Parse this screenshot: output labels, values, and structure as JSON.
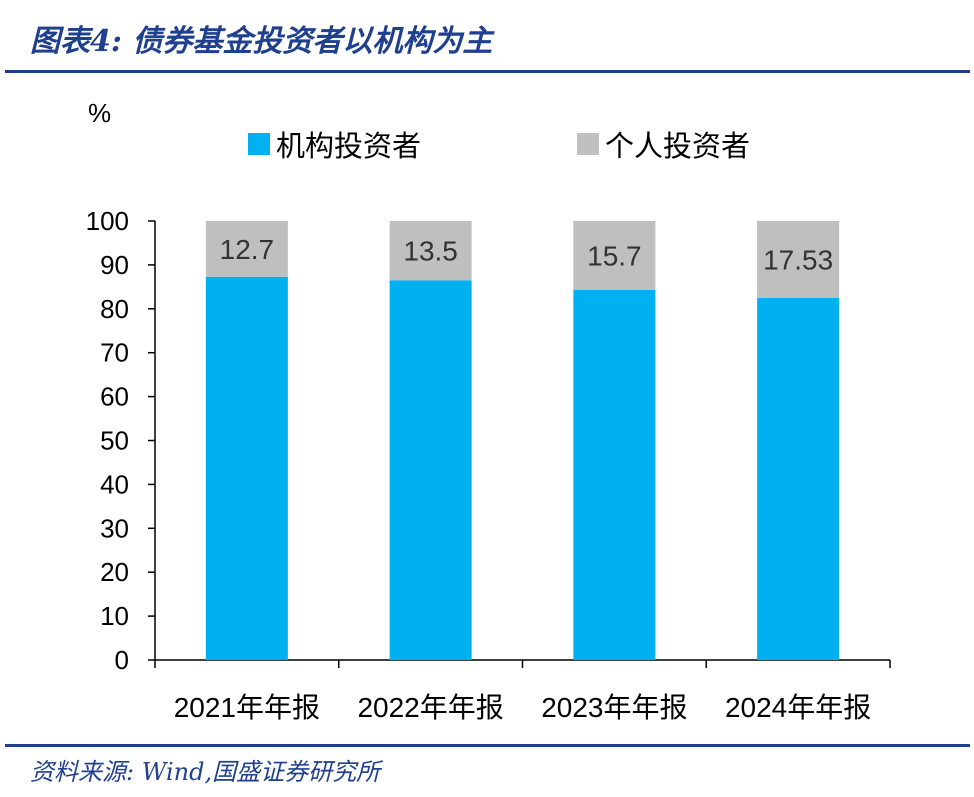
{
  "header": {
    "title": "图表4:  债券基金投资者以机构为主"
  },
  "footer": {
    "source": "资料来源:  Wind,国盛证券研究所"
  },
  "chart_data": {
    "type": "bar",
    "stacked": true,
    "unit": "%",
    "categories": [
      "2021年年报",
      "2022年年报",
      "2023年年报",
      "2024年年报"
    ],
    "series": [
      {
        "name": "机构投资者",
        "values": [
          87.3,
          86.5,
          84.3,
          82.47
        ],
        "color": "#00b0f0",
        "show_labels": false
      },
      {
        "name": "个人投资者",
        "values": [
          12.7,
          13.5,
          15.7,
          17.53
        ],
        "color": "#bfbfbf",
        "show_labels": true
      }
    ],
    "data_labels": [
      "12.7",
      "13.5",
      "15.7",
      "17.53"
    ],
    "ylim": [
      0,
      100
    ],
    "yticks": [
      0,
      10,
      20,
      30,
      40,
      50,
      60,
      70,
      80,
      90,
      100
    ],
    "grid": false,
    "legend_position": "top"
  }
}
